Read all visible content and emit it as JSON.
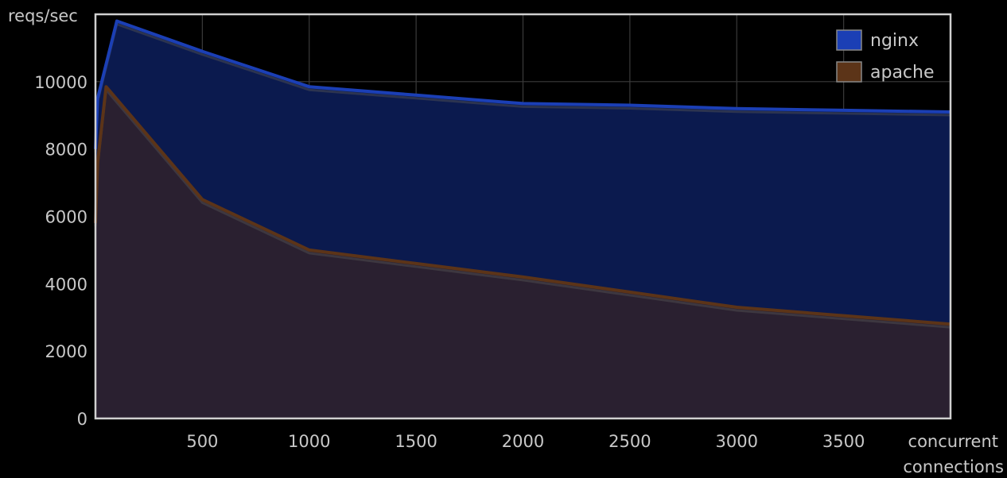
{
  "chart_data": {
    "type": "area",
    "xlabel": "concurrent connections",
    "xlabel_lines": [
      "concurrent",
      "connections"
    ],
    "ylabel": "reqs/sec",
    "xlim": [
      0,
      4000
    ],
    "ylim": [
      0,
      12000
    ],
    "x_ticks": [
      500,
      1000,
      1500,
      2000,
      2500,
      3000,
      3500
    ],
    "y_ticks": [
      0,
      2000,
      4000,
      6000,
      8000,
      10000
    ],
    "grid": true,
    "legend_position": "top-right",
    "series": [
      {
        "name": "nginx",
        "color": "#1b3fb5",
        "fill": "#0b1a4e",
        "points": [
          [
            0,
            8000
          ],
          [
            10,
            9500
          ],
          [
            100,
            11800
          ],
          [
            500,
            10900
          ],
          [
            1000,
            9850
          ],
          [
            1500,
            9600
          ],
          [
            2000,
            9350
          ],
          [
            2500,
            9300
          ],
          [
            3000,
            9200
          ],
          [
            3500,
            9150
          ],
          [
            4000,
            9100
          ]
        ]
      },
      {
        "name": "apache",
        "color": "#5c3418",
        "fill": "#2a2030",
        "points": [
          [
            0,
            5800
          ],
          [
            10,
            7600
          ],
          [
            50,
            9850
          ],
          [
            500,
            6500
          ],
          [
            1000,
            5000
          ],
          [
            1500,
            4600
          ],
          [
            2000,
            4200
          ],
          [
            2500,
            3750
          ],
          [
            3000,
            3300
          ],
          [
            3500,
            3050
          ],
          [
            4000,
            2800
          ]
        ]
      }
    ]
  }
}
